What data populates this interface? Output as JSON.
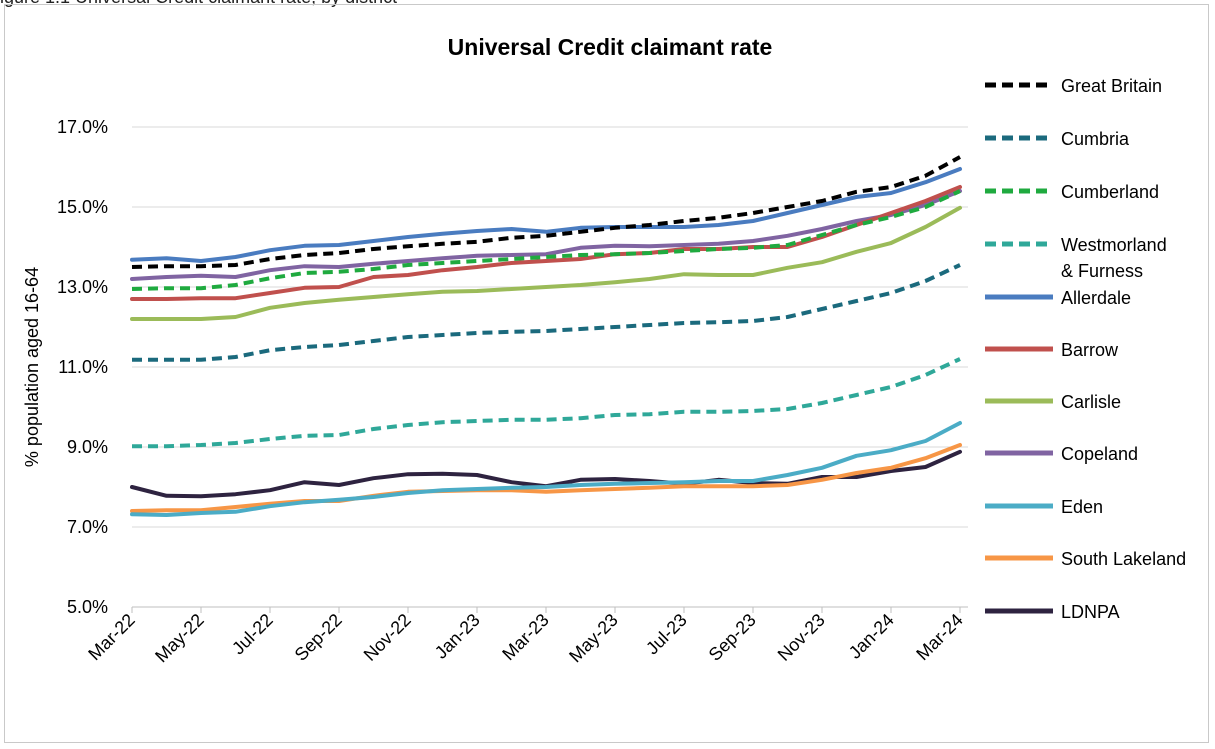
{
  "top_caption": "igure 1.1 Universal Credit claimant rate, by district",
  "chart_data": {
    "type": "line",
    "title": "Universal Credit claimant rate",
    "ylabel": "% population aged 16-64",
    "xlabel": "",
    "ylim": [
      5.0,
      17.0
    ],
    "yticks": [
      "5.0%",
      "7.0%",
      "9.0%",
      "11.0%",
      "13.0%",
      "15.0%",
      "17.0%"
    ],
    "ytick_values": [
      5,
      7,
      9,
      11,
      13,
      15,
      17
    ],
    "x": [
      "Mar-22",
      "Apr-22",
      "May-22",
      "Jun-22",
      "Jul-22",
      "Aug-22",
      "Sep-22",
      "Oct-22",
      "Nov-22",
      "Dec-22",
      "Jan-23",
      "Feb-23",
      "Mar-23",
      "Apr-23",
      "May-23",
      "Jun-23",
      "Jul-23",
      "Aug-23",
      "Sep-23",
      "Oct-23",
      "Nov-23",
      "Dec-23",
      "Jan-24",
      "Feb-24",
      "Mar-24"
    ],
    "xtick_labels": [
      "Mar-22",
      "May-22",
      "Jul-22",
      "Sep-22",
      "Nov-22",
      "Jan-23",
      "Mar-23",
      "May-23",
      "Jul-23",
      "Sep-23",
      "Nov-23",
      "Jan-24",
      "Mar-24"
    ],
    "grid": "horizontal",
    "legend_position": "right",
    "series": [
      {
        "name": "Great Britain",
        "color": "#000000",
        "dashed": true,
        "values": [
          13.5,
          13.52,
          13.52,
          13.55,
          13.7,
          13.8,
          13.85,
          13.95,
          14.02,
          14.08,
          14.13,
          14.23,
          14.28,
          14.38,
          14.48,
          14.55,
          14.65,
          14.73,
          14.85,
          15.0,
          15.15,
          15.38,
          15.5,
          15.78,
          16.25
        ]
      },
      {
        "name": "Cumbria",
        "color": "#1b6a7d",
        "dashed": true,
        "values": [
          11.18,
          11.18,
          11.18,
          11.25,
          11.42,
          11.5,
          11.55,
          11.65,
          11.75,
          11.8,
          11.85,
          11.88,
          11.9,
          11.95,
          12.0,
          12.05,
          12.1,
          12.12,
          12.15,
          12.25,
          12.45,
          12.65,
          12.85,
          13.15,
          13.55
        ]
      },
      {
        "name": "Cumberland",
        "color": "#1faa3f",
        "dashed": true,
        "values": [
          12.95,
          12.97,
          12.97,
          13.05,
          13.22,
          13.35,
          13.38,
          13.45,
          13.55,
          13.6,
          13.65,
          13.7,
          13.75,
          13.8,
          13.82,
          13.85,
          13.9,
          13.95,
          13.98,
          14.05,
          14.3,
          14.55,
          14.75,
          15.0,
          15.4
        ]
      },
      {
        "name": "Westmorland & Furness",
        "color": "#2fa899",
        "dashed": true,
        "values": [
          9.02,
          9.02,
          9.05,
          9.1,
          9.2,
          9.28,
          9.3,
          9.45,
          9.55,
          9.62,
          9.65,
          9.68,
          9.68,
          9.72,
          9.8,
          9.82,
          9.88,
          9.88,
          9.9,
          9.95,
          10.1,
          10.3,
          10.5,
          10.8,
          11.2
        ]
      },
      {
        "name": "Allerdale",
        "color": "#4a7cc0",
        "dashed": false,
        "values": [
          13.68,
          13.72,
          13.65,
          13.75,
          13.92,
          14.03,
          14.05,
          14.15,
          14.25,
          14.33,
          14.4,
          14.45,
          14.38,
          14.48,
          14.5,
          14.5,
          14.5,
          14.55,
          14.65,
          14.85,
          15.05,
          15.25,
          15.35,
          15.62,
          15.95
        ]
      },
      {
        "name": "Barrow",
        "color": "#c0504d",
        "dashed": false,
        "values": [
          12.7,
          12.7,
          12.72,
          12.72,
          12.85,
          12.98,
          13.0,
          13.25,
          13.3,
          13.42,
          13.5,
          13.6,
          13.65,
          13.7,
          13.82,
          13.85,
          13.95,
          13.95,
          14.0,
          14.0,
          14.25,
          14.55,
          14.85,
          15.15,
          15.5
        ]
      },
      {
        "name": "Carlisle",
        "color": "#9bbb59",
        "dashed": false,
        "values": [
          12.2,
          12.2,
          12.2,
          12.25,
          12.48,
          12.6,
          12.68,
          12.75,
          12.82,
          12.88,
          12.9,
          12.95,
          13.0,
          13.05,
          13.12,
          13.2,
          13.32,
          13.3,
          13.3,
          13.48,
          13.62,
          13.88,
          14.1,
          14.5,
          14.98
        ]
      },
      {
        "name": "Copeland",
        "color": "#8064a2",
        "dashed": false,
        "values": [
          13.2,
          13.25,
          13.28,
          13.25,
          13.42,
          13.52,
          13.5,
          13.58,
          13.65,
          13.72,
          13.78,
          13.8,
          13.82,
          13.98,
          14.03,
          14.02,
          14.05,
          14.08,
          14.15,
          14.28,
          14.45,
          14.65,
          14.8,
          15.05,
          15.4
        ]
      },
      {
        "name": "Eden",
        "color": "#4bacc6",
        "dashed": false,
        "values": [
          7.32,
          7.3,
          7.35,
          7.38,
          7.52,
          7.62,
          7.68,
          7.75,
          7.85,
          7.92,
          7.95,
          7.98,
          8.0,
          8.05,
          8.08,
          8.1,
          8.12,
          8.15,
          8.15,
          8.3,
          8.48,
          8.78,
          8.92,
          9.15,
          9.6
        ]
      },
      {
        "name": "South Lakeland",
        "color": "#f79646",
        "dashed": false,
        "values": [
          7.4,
          7.42,
          7.42,
          7.5,
          7.58,
          7.65,
          7.65,
          7.78,
          7.88,
          7.9,
          7.92,
          7.92,
          7.88,
          7.92,
          7.95,
          7.98,
          8.02,
          8.02,
          8.02,
          8.05,
          8.18,
          8.35,
          8.48,
          8.72,
          9.05
        ]
      },
      {
        "name": "LDNPA",
        "color": "#2e2340",
        "dashed": false,
        "values": [
          8.0,
          7.78,
          7.77,
          7.82,
          7.92,
          8.12,
          8.05,
          8.22,
          8.32,
          8.33,
          8.3,
          8.12,
          8.02,
          8.18,
          8.2,
          8.15,
          8.08,
          8.18,
          8.1,
          8.08,
          8.25,
          8.25,
          8.4,
          8.5,
          8.88
        ]
      }
    ]
  }
}
